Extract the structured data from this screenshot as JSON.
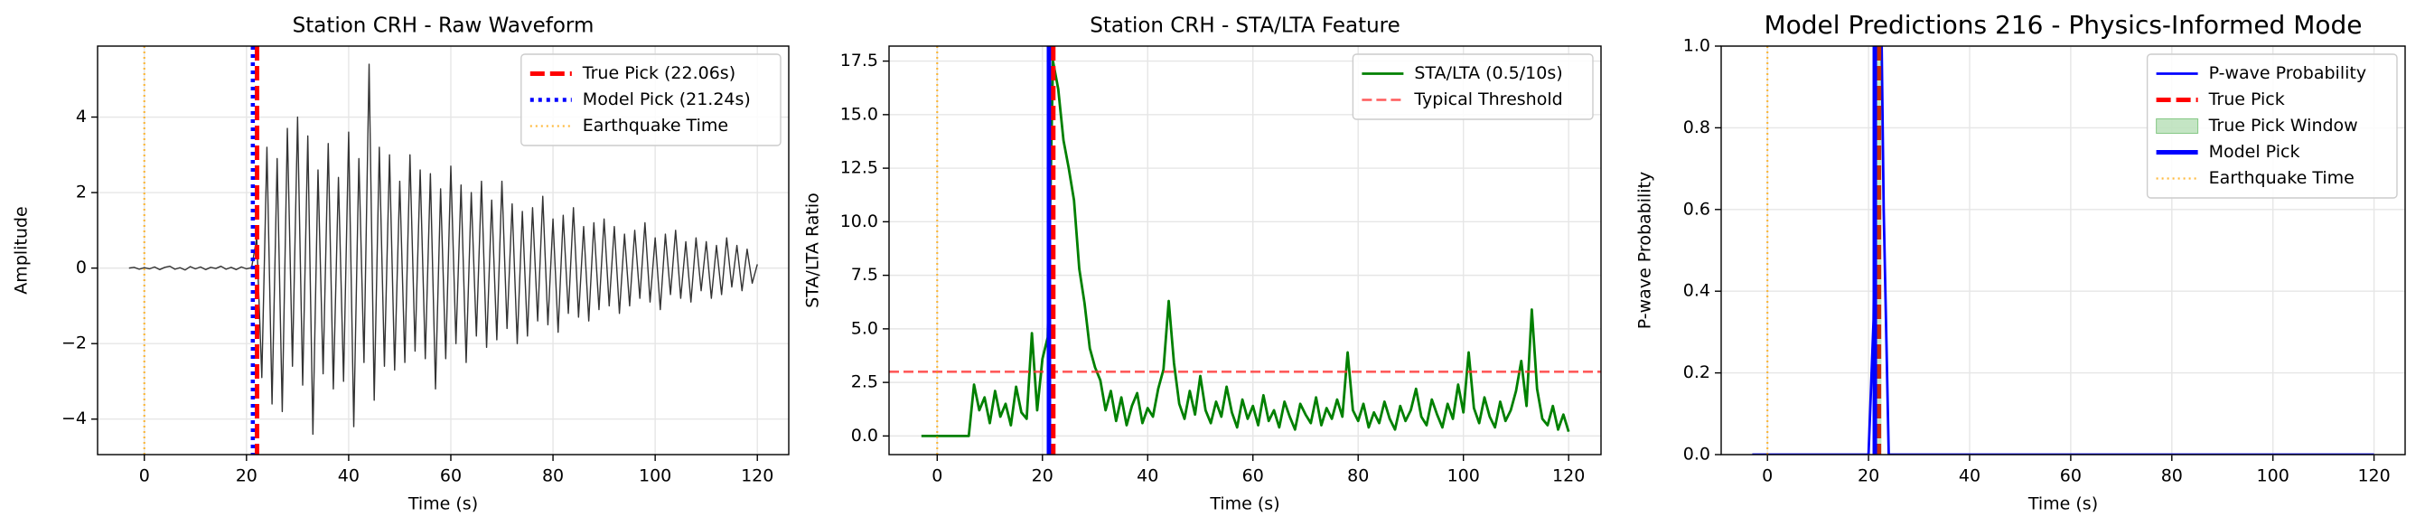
{
  "chart_data": [
    {
      "type": "line",
      "title": "Station CRH - Raw Waveform",
      "xlabel": "Time (s)",
      "ylabel": "Amplitude",
      "xlim": [
        -9.15,
        126.15
      ],
      "ylim": [
        -4.94,
        5.88
      ],
      "xticks": [
        0,
        20,
        40,
        60,
        80,
        100,
        120
      ],
      "yticks": [
        {
          "value": -4,
          "label": "−4"
        },
        {
          "value": -2,
          "label": "−2"
        },
        0,
        2,
        4
      ],
      "grid": true,
      "legend": "upper right",
      "x": [
        -3,
        -2,
        -1,
        0,
        1,
        2,
        3,
        4,
        5,
        6,
        7,
        8,
        9,
        10,
        11,
        12,
        13,
        14,
        15,
        16,
        17,
        18,
        19,
        20,
        21,
        22,
        23,
        24,
        25,
        26,
        27,
        28,
        29,
        30,
        31,
        32,
        33,
        34,
        35,
        36,
        37,
        38,
        39,
        40,
        41,
        42,
        43,
        44,
        45,
        46,
        47,
        48,
        49,
        50,
        51,
        52,
        53,
        54,
        55,
        56,
        57,
        58,
        59,
        60,
        61,
        62,
        63,
        64,
        65,
        66,
        67,
        68,
        69,
        70,
        71,
        72,
        73,
        74,
        75,
        76,
        77,
        78,
        79,
        80,
        81,
        82,
        83,
        84,
        85,
        86,
        87,
        88,
        89,
        90,
        91,
        92,
        93,
        94,
        95,
        96,
        97,
        98,
        99,
        100,
        101,
        102,
        103,
        104,
        105,
        106,
        107,
        108,
        109,
        110,
        111,
        112,
        113,
        114,
        115,
        116,
        117,
        118,
        119,
        120
      ],
      "series": [
        {
          "color": "#333333",
          "style": "solid-thin",
          "values": [
            0,
            0.02,
            -0.03,
            0.01,
            -0.02,
            0.03,
            -0.04,
            0.02,
            0.05,
            -0.03,
            0.01,
            -0.05,
            0.04,
            -0.02,
            0.03,
            -0.04,
            0.02,
            -0.01,
            0.05,
            -0.03,
            0.02,
            -0.04,
            0.03,
            -0.02,
            0.01,
            0.8,
            -2.9,
            3.2,
            -3.6,
            2.9,
            -3.8,
            3.7,
            -2.6,
            4.0,
            -3.1,
            3.5,
            -4.4,
            2.6,
            -2.8,
            3.3,
            -3.2,
            2.4,
            -3.0,
            3.6,
            -4.2,
            2.9,
            -2.5,
            5.4,
            -3.5,
            3.2,
            -2.6,
            3.0,
            -2.7,
            2.3,
            -2.5,
            3.0,
            -2.2,
            2.6,
            -2.4,
            2.5,
            -3.2,
            2.1,
            -2.4,
            2.7,
            -2.0,
            2.2,
            -2.5,
            2.0,
            -1.8,
            2.3,
            -2.1,
            1.8,
            -1.9,
            2.3,
            -1.6,
            1.7,
            -2.0,
            1.5,
            -1.8,
            1.6,
            -1.4,
            1.9,
            -1.5,
            1.3,
            -1.7,
            1.4,
            -1.2,
            1.6,
            -1.3,
            1.1,
            -1.4,
            1.2,
            -1.1,
            1.3,
            -1.0,
            1.1,
            -1.2,
            0.9,
            -1.0,
            1.0,
            -0.8,
            1.2,
            -0.9,
            0.8,
            -1.1,
            0.9,
            -0.7,
            1.0,
            -0.8,
            0.7,
            -0.9,
            0.8,
            -0.6,
            0.7,
            -0.8,
            0.6,
            -0.7,
            0.8,
            -0.5,
            0.6,
            -0.6,
            0.5,
            -0.4,
            0.1
          ]
        }
      ],
      "overlays": [
        {
          "kind": "vline",
          "name": "True Pick (22.06s)",
          "x": 22.06,
          "color": "#ff0000",
          "style": "dashed-thick"
        },
        {
          "kind": "vline",
          "name": "Model Pick (21.24s)",
          "x": 21.24,
          "color": "#0000ff",
          "style": "dotted-thick"
        },
        {
          "kind": "vline",
          "name": "Earthquake Time",
          "x": 0,
          "color": "#ffa500",
          "style": "dotted-thin"
        }
      ]
    },
    {
      "type": "line",
      "title": "Station CRH - STA/LTA Feature",
      "xlabel": "Time (s)",
      "ylabel": "STA/LTA Ratio",
      "xlim": [
        -9.15,
        126.15
      ],
      "ylim": [
        -0.87,
        18.2
      ],
      "xticks": [
        0,
        20,
        40,
        60,
        80,
        100,
        120
      ],
      "yticks": [
        {
          "value": 0,
          "label": "0.0"
        },
        2.5,
        {
          "value": 5,
          "label": "5.0"
        },
        7.5,
        {
          "value": 10,
          "label": "10.0"
        },
        12.5,
        {
          "value": 15,
          "label": "15.0"
        },
        17.5
      ],
      "grid": true,
      "legend": "upper right",
      "x": [
        -3,
        -2,
        -1,
        0,
        1,
        2,
        3,
        4,
        5,
        6,
        7,
        8,
        9,
        10,
        11,
        12,
        13,
        14,
        15,
        16,
        17,
        18,
        19,
        20,
        21,
        22,
        23,
        24,
        25,
        26,
        27,
        28,
        29,
        30,
        31,
        32,
        33,
        34,
        35,
        36,
        37,
        38,
        39,
        40,
        41,
        42,
        43,
        44,
        45,
        46,
        47,
        48,
        49,
        50,
        51,
        52,
        53,
        54,
        55,
        56,
        57,
        58,
        59,
        60,
        61,
        62,
        63,
        64,
        65,
        66,
        67,
        68,
        69,
        70,
        71,
        72,
        73,
        74,
        75,
        76,
        77,
        78,
        79,
        80,
        81,
        82,
        83,
        84,
        85,
        86,
        87,
        88,
        89,
        90,
        91,
        92,
        93,
        94,
        95,
        96,
        97,
        98,
        99,
        100,
        101,
        102,
        103,
        104,
        105,
        106,
        107,
        108,
        109,
        110,
        111,
        112,
        113,
        114,
        115,
        116,
        117,
        118,
        119,
        120
      ],
      "series": [
        {
          "name": "STA/LTA (0.5/10s)",
          "color": "#008000",
          "style": "solid-mid",
          "values": [
            0,
            0,
            0,
            0,
            0,
            0,
            0,
            0,
            0,
            0,
            2.4,
            1.2,
            1.8,
            0.6,
            2.1,
            0.9,
            1.5,
            0.5,
            2.3,
            1.1,
            0.8,
            4.8,
            1.2,
            3.6,
            4.6,
            17.5,
            16.2,
            13.8,
            12.5,
            11.0,
            7.8,
            6.2,
            4.1,
            3.2,
            2.6,
            1.2,
            2.1,
            0.7,
            1.8,
            0.5,
            1.4,
            2.0,
            0.6,
            1.3,
            0.9,
            2.2,
            3.1,
            6.3,
            3.4,
            1.5,
            0.8,
            2.1,
            1.0,
            2.8,
            1.2,
            0.6,
            1.6,
            0.9,
            2.3,
            1.1,
            0.4,
            1.7,
            0.8,
            1.4,
            0.5,
            1.9,
            0.7,
            1.2,
            0.4,
            1.6,
            0.9,
            0.3,
            1.5,
            1.0,
            0.6,
            1.8,
            0.5,
            1.3,
            0.8,
            1.7,
            0.9,
            3.9,
            1.2,
            0.7,
            1.5,
            0.4,
            1.1,
            0.6,
            1.6,
            0.8,
            0.3,
            1.4,
            0.7,
            1.2,
            2.2,
            0.9,
            0.5,
            1.7,
            1.0,
            0.4,
            1.5,
            0.8,
            2.4,
            1.1,
            3.9,
            1.3,
            0.6,
            1.8,
            0.9,
            0.4,
            1.6,
            0.7,
            1.2,
            2.1,
            3.5,
            1.4,
            5.9,
            2.2,
            0.8,
            0.5,
            1.4,
            0.3,
            1.0,
            0.2
          ]
        }
      ],
      "overlays": [
        {
          "kind": "hline",
          "name": "Typical Threshold",
          "y": 3,
          "color": "#ff3333",
          "style": "dashed-thin"
        },
        {
          "kind": "vline",
          "x": 21.24,
          "color": "#0000ff",
          "style": "solid-thick"
        },
        {
          "kind": "vline",
          "x": 22.06,
          "color": "#ff0000",
          "style": "dashed-thick"
        },
        {
          "kind": "vline",
          "x": 0,
          "color": "#ffa500",
          "style": "dotted-thin"
        }
      ]
    },
    {
      "type": "line",
      "title": "Model Predictions 216 - Physics-Informed Mode",
      "xlabel": "Time (s)",
      "ylabel": "P-wave Probability",
      "xlim": [
        -9.15,
        126.15
      ],
      "ylim": [
        0,
        1
      ],
      "xticks": [
        0,
        20,
        40,
        60,
        80,
        100,
        120
      ],
      "yticks": [
        {
          "value": 0,
          "label": "0.0"
        },
        0.2,
        0.4,
        0.6,
        0.8,
        {
          "value": 1,
          "label": "1.0"
        }
      ],
      "grid": true,
      "legend": "upper right",
      "x": [
        -3,
        20,
        21,
        21.2,
        21.4,
        22,
        22.6,
        23,
        24,
        120
      ],
      "series": [
        {
          "name": "P-wave Probability",
          "color": "#0000ff",
          "style": "solid-mid",
          "values": [
            0,
            0,
            0.33,
            0.62,
            1,
            1,
            1,
            0.6,
            0,
            0
          ]
        }
      ],
      "overlays": [
        {
          "kind": "vline",
          "name": "True Pick",
          "x": 22.06,
          "color": "#ff0000",
          "style": "dashed-thick"
        },
        {
          "kind": "span",
          "name": "True Pick Window",
          "x0": 21.56,
          "x1": 22.56,
          "color": "#2ca02c"
        },
        {
          "kind": "vline",
          "name": "Model Pick",
          "x": 21.24,
          "color": "#0000ff",
          "style": "solid-thick"
        },
        {
          "kind": "vline",
          "name": "Earthquake Time",
          "x": 0,
          "color": "#ffa500",
          "style": "dotted-thin"
        }
      ]
    }
  ]
}
